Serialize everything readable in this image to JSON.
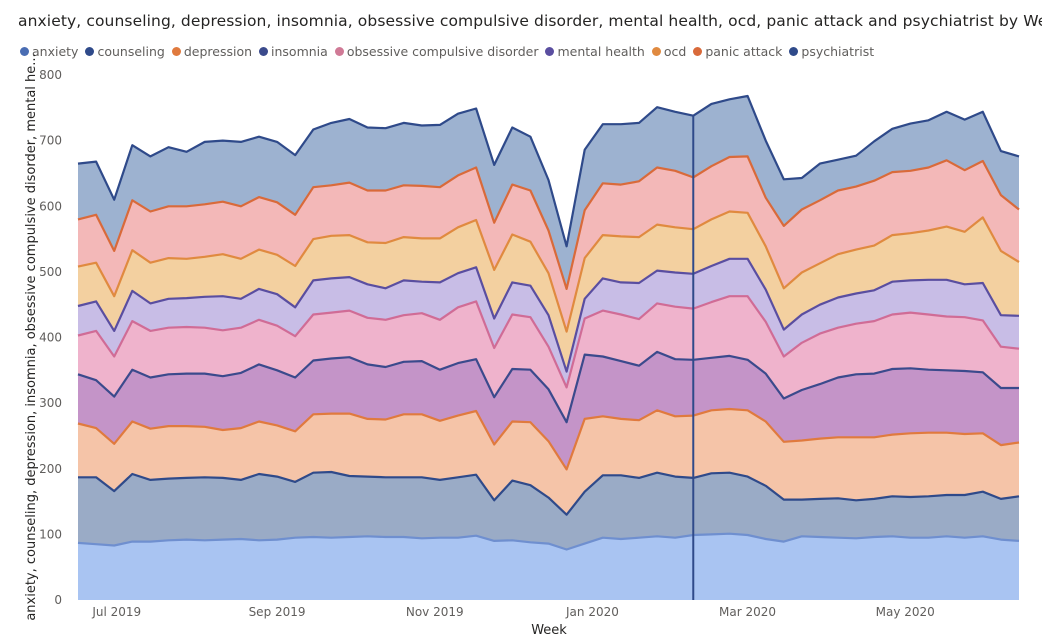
{
  "title": "anxiety, counseling, depression, insomnia, obsessive compulsive disorder, mental health, ocd, panic attack and psychiatrist by Week",
  "colors": {
    "anxiety": {
      "fill": "#a9c4f2",
      "line": "#6f8fcf"
    },
    "counseling": {
      "fill": "#9aabc6",
      "line": "#2f4a8a"
    },
    "depression": {
      "fill": "#f5c4a8",
      "line": "#e07a3e"
    },
    "insomnia": {
      "fill": "#c494c8",
      "line": "#3b4a8c"
    },
    "obsessive compulsive disorder": {
      "fill": "#efb3cc",
      "line": "#d06c96"
    },
    "mental health": {
      "fill": "#c8bde6",
      "line": "#5a4ea0"
    },
    "ocd": {
      "fill": "#f3d0a0",
      "line": "#e08a40"
    },
    "panic attack": {
      "fill": "#f3b8b8",
      "line": "#d96a3a"
    },
    "psychiatrist": {
      "fill": "#9db2d0",
      "line": "#2f4a8a"
    }
  },
  "chart_data": {
    "type": "area",
    "stacked": true,
    "title": "anxiety, counseling, depression, insomnia, obsessive compulsive disorder, mental health, ocd, panic attack and psychiatrist by Week",
    "xlabel": "Week",
    "ylabel": "anxiety, counseling, depression, insomnia, obsessive compulsive disorder, mental he...",
    "ylim": [
      0,
      800
    ],
    "y_ticks": [
      0,
      100,
      200,
      300,
      400,
      500,
      600,
      700,
      800
    ],
    "x_tick_labels": [
      "Jul 2019",
      "Sep 2019",
      "Nov 2019",
      "Jan 2020",
      "Mar 2020",
      "May 2020"
    ],
    "x_tick_dates": [
      "2019-07-01",
      "2019-09-01",
      "2019-11-01",
      "2020-01-01",
      "2020-03-01",
      "2020-05-01"
    ],
    "x_start": "2019-06-16",
    "x_end": "2020-06-14",
    "legend_position": "top-left",
    "grid": false,
    "highlight_date": "2020-02-09",
    "x": [
      "2019-06-16",
      "2019-06-23",
      "2019-06-30",
      "2019-07-07",
      "2019-07-14",
      "2019-07-21",
      "2019-07-28",
      "2019-08-04",
      "2019-08-11",
      "2019-08-18",
      "2019-08-25",
      "2019-09-01",
      "2019-09-08",
      "2019-09-15",
      "2019-09-22",
      "2019-09-29",
      "2019-10-06",
      "2019-10-13",
      "2019-10-20",
      "2019-10-27",
      "2019-11-03",
      "2019-11-10",
      "2019-11-17",
      "2019-11-24",
      "2019-12-01",
      "2019-12-08",
      "2019-12-15",
      "2019-12-22",
      "2019-12-29",
      "2020-01-05",
      "2020-01-12",
      "2020-01-19",
      "2020-01-26",
      "2020-02-02",
      "2020-02-09",
      "2020-02-16",
      "2020-02-23",
      "2020-03-01",
      "2020-03-08",
      "2020-03-15",
      "2020-03-22",
      "2020-03-29",
      "2020-04-05",
      "2020-04-12",
      "2020-04-19",
      "2020-04-26",
      "2020-05-03",
      "2020-05-10",
      "2020-05-17",
      "2020-05-24",
      "2020-05-31",
      "2020-06-07",
      "2020-06-14"
    ],
    "series": [
      {
        "name": "anxiety",
        "values": [
          87,
          85,
          83,
          89,
          89,
          91,
          92,
          91,
          92,
          93,
          91,
          92,
          95,
          96,
          95,
          96,
          97,
          96,
          96,
          94,
          95,
          95,
          98,
          90,
          91,
          88,
          86,
          77,
          86,
          95,
          93,
          95,
          97,
          95,
          99,
          100,
          101,
          99,
          93,
          89,
          97,
          96,
          95,
          94,
          96,
          97,
          95,
          95,
          97,
          95,
          97,
          92,
          90
        ]
      },
      {
        "name": "counseling",
        "values": [
          100,
          102,
          83,
          103,
          94,
          94,
          94,
          96,
          94,
          90,
          101,
          96,
          85,
          98,
          100,
          93,
          91,
          91,
          91,
          93,
          88,
          92,
          93,
          62,
          91,
          87,
          70,
          53,
          79,
          95,
          97,
          91,
          97,
          93,
          87,
          93,
          93,
          89,
          81,
          64,
          56,
          58,
          60,
          58,
          58,
          61,
          62,
          63,
          63,
          65,
          68,
          62,
          68
        ]
      },
      {
        "name": "depression",
        "values": [
          82,
          75,
          72,
          80,
          78,
          80,
          79,
          77,
          73,
          79,
          80,
          78,
          77,
          89,
          89,
          95,
          88,
          88,
          96,
          96,
          90,
          94,
          97,
          85,
          90,
          96,
          86,
          69,
          111,
          90,
          86,
          88,
          95,
          92,
          95,
          96,
          97,
          101,
          98,
          88,
          90,
          92,
          93,
          96,
          94,
          94,
          97,
          97,
          95,
          93,
          89,
          82,
          82
        ]
      },
      {
        "name": "insomnia",
        "values": [
          75,
          73,
          72,
          79,
          78,
          79,
          80,
          81,
          82,
          84,
          87,
          84,
          82,
          82,
          84,
          86,
          83,
          80,
          80,
          81,
          78,
          80,
          79,
          72,
          80,
          80,
          79,
          72,
          98,
          91,
          88,
          83,
          89,
          87,
          85,
          80,
          81,
          77,
          73,
          66,
          77,
          83,
          91,
          96,
          97,
          100,
          99,
          96,
          95,
          96,
          93,
          87,
          83
        ]
      },
      {
        "name": "obsessive compulsive disorder",
        "values": [
          59,
          75,
          61,
          74,
          71,
          71,
          71,
          70,
          70,
          69,
          68,
          68,
          63,
          70,
          70,
          71,
          71,
          72,
          71,
          73,
          76,
          85,
          88,
          75,
          83,
          80,
          65,
          53,
          55,
          70,
          71,
          71,
          74,
          80,
          78,
          85,
          91,
          97,
          79,
          64,
          72,
          77,
          76,
          77,
          80,
          83,
          85,
          84,
          82,
          82,
          79,
          63,
          60
        ]
      },
      {
        "name": "mental health",
        "values": [
          45,
          45,
          39,
          46,
          42,
          44,
          44,
          47,
          52,
          44,
          47,
          48,
          44,
          52,
          52,
          51,
          51,
          48,
          53,
          48,
          57,
          52,
          52,
          45,
          49,
          48,
          48,
          24,
          30,
          49,
          49,
          55,
          50,
          52,
          53,
          55,
          57,
          57,
          49,
          41,
          43,
          44,
          46,
          46,
          47,
          50,
          49,
          53,
          56,
          50,
          57,
          48,
          50
        ]
      },
      {
        "name": "ocd",
        "values": [
          60,
          59,
          53,
          62,
          62,
          62,
          60,
          61,
          64,
          61,
          60,
          60,
          63,
          63,
          65,
          64,
          64,
          69,
          66,
          66,
          67,
          70,
          72,
          74,
          73,
          67,
          64,
          61,
          62,
          66,
          70,
          70,
          70,
          69,
          68,
          71,
          72,
          70,
          66,
          63,
          64,
          63,
          66,
          67,
          68,
          71,
          72,
          75,
          81,
          80,
          100,
          98,
          82
        ]
      },
      {
        "name": "panic attack",
        "values": [
          72,
          73,
          69,
          76,
          78,
          79,
          80,
          80,
          80,
          80,
          80,
          80,
          78,
          79,
          77,
          80,
          79,
          80,
          79,
          80,
          78,
          79,
          80,
          72,
          76,
          78,
          65,
          65,
          73,
          79,
          79,
          85,
          87,
          86,
          79,
          81,
          83,
          86,
          74,
          95,
          96,
          96,
          97,
          96,
          99,
          96,
          95,
          96,
          101,
          94,
          86,
          85,
          80
        ]
      },
      {
        "name": "psychiatrist",
        "values": [
          85,
          81,
          78,
          84,
          84,
          90,
          83,
          95,
          93,
          98,
          92,
          92,
          91,
          88,
          95,
          97,
          96,
          95,
          95,
          92,
          95,
          94,
          90,
          88,
          87,
          82,
          77,
          65,
          92,
          90,
          92,
          89,
          92,
          90,
          94,
          95,
          88,
          92,
          87,
          71,
          48,
          56,
          47,
          47,
          60,
          66,
          72,
          72,
          74,
          77,
          75,
          67,
          81
        ]
      }
    ]
  }
}
